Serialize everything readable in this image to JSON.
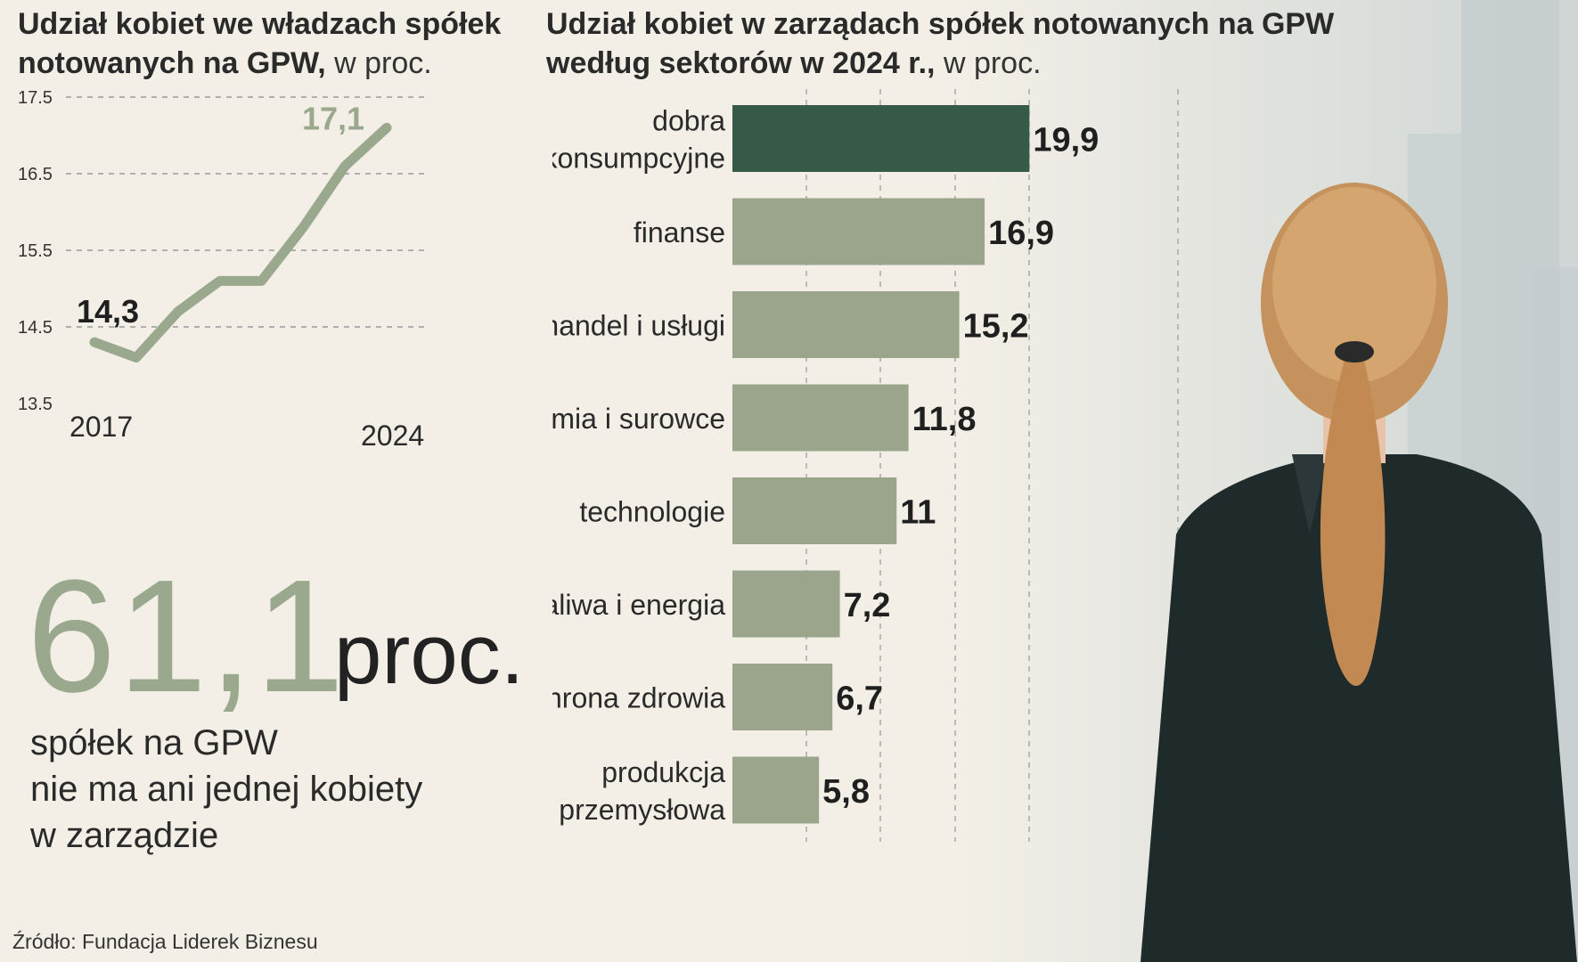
{
  "left_chart": {
    "title": "Udział kobiet we władzach spółek notowanych na GPW,",
    "title_suffix": " w proc."
  },
  "right_chart": {
    "title": "Udział kobiet w zarządach spółek notowanych na GPW według sektorów w 2024 r.,",
    "title_suffix": " w proc."
  },
  "highlight": {
    "value": "61,1",
    "unit": "proc.",
    "description_lines": [
      "spółek na GPW",
      "nie ma ani jednej kobiety",
      "w zarządzie"
    ]
  },
  "source": "Źródło: Fundacja Liderek Biznesu",
  "colors": {
    "background": "#f3efe6",
    "line": "#9aa98e",
    "bar": "#9aa58c",
    "bar_highlight": "#355a48",
    "text": "#1f1f1f"
  },
  "chart_data": [
    {
      "type": "line",
      "x": [
        2017,
        2018,
        2019,
        2020,
        2021,
        2022,
        2023,
        2024
      ],
      "series": [
        {
          "values": [
            14.3,
            14.1,
            14.7,
            15.1,
            15.1,
            15.8,
            16.6,
            17.1
          ]
        }
      ],
      "x_tick_labels": [
        "2017",
        "2024"
      ],
      "y_ticks": [
        "17.5",
        "16.5",
        "15.5",
        "14.5",
        "13.5"
      ],
      "ylim": [
        13.5,
        17.5
      ],
      "data_labels": [
        {
          "index": 0,
          "text": "14,3"
        },
        {
          "index": 7,
          "text": "17,1"
        }
      ],
      "grid": true
    },
    {
      "type": "bar",
      "orientation": "horizontal",
      "categories": [
        [
          "dobra",
          "konsumpcyjne"
        ],
        [
          "finanse"
        ],
        [
          "handel i usługi"
        ],
        [
          "chemia i surowce"
        ],
        [
          "technologie"
        ],
        [
          "paliwa i energia"
        ],
        [
          "ochrona zdrowia"
        ],
        [
          "produkcja",
          "przemysłowa"
        ]
      ],
      "values": [
        19.9,
        16.9,
        15.2,
        11.8,
        11,
        7.2,
        6.7,
        5.8
      ],
      "value_labels": [
        "19,9",
        "16,9",
        "15,2",
        "11,8",
        "11",
        "7,2",
        "6,7",
        "5,8"
      ],
      "highlight_index": 0,
      "xlim": [
        0,
        20
      ],
      "grid": true
    }
  ]
}
